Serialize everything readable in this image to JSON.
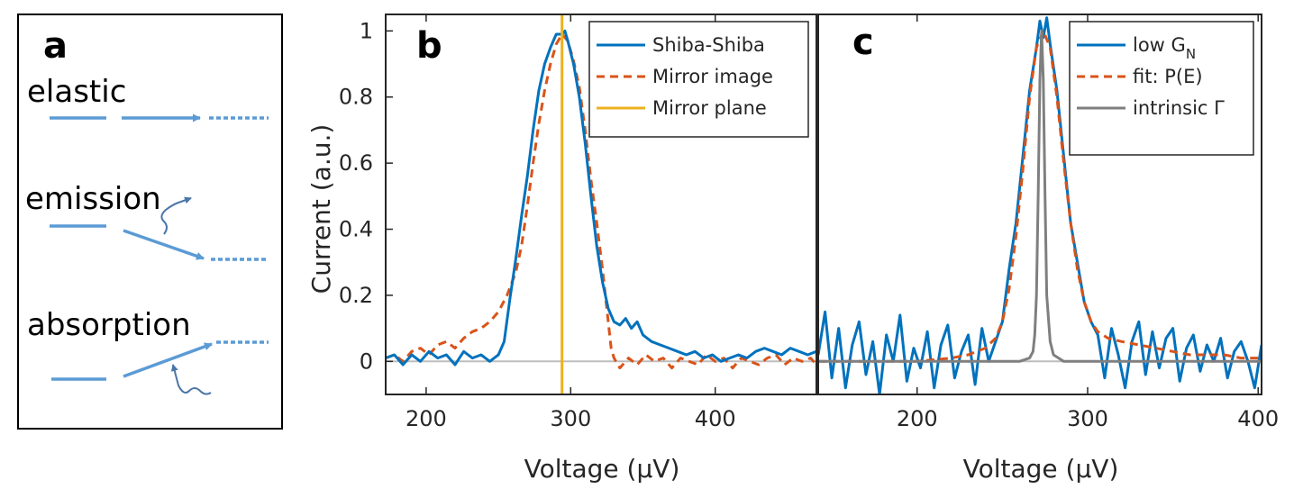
{
  "panel_a": {
    "letter": "a",
    "labels": [
      "elastic",
      "emission",
      "absorption"
    ]
  },
  "chart_data": [
    {
      "panel": "b",
      "type": "line",
      "title": "",
      "xlabel": "Voltage (μV)",
      "ylabel": "Current (a.u.)",
      "xlim": [
        172,
        470
      ],
      "ylim": [
        -0.1,
        1.05
      ],
      "xticks": [
        "200",
        "300",
        "400"
      ],
      "yticks": [
        "0",
        "0.2",
        "0.4",
        "0.6",
        "0.8",
        "1"
      ],
      "legend_position": "top-right",
      "series": [
        {
          "name": "Shiba-Shiba",
          "color": "#0072BD",
          "style": "solid",
          "x": [
            172,
            178,
            184,
            190,
            196,
            202,
            208,
            214,
            220,
            226,
            232,
            238,
            244,
            250,
            254,
            258,
            262,
            266,
            270,
            274,
            278,
            282,
            286,
            290,
            294,
            296,
            298,
            302,
            306,
            310,
            314,
            318,
            322,
            326,
            330,
            334,
            338,
            342,
            346,
            350,
            356,
            362,
            368,
            374,
            380,
            386,
            392,
            398,
            404,
            410,
            416,
            422,
            428,
            434,
            440,
            446,
            452,
            458,
            464,
            470
          ],
          "y": [
            0.01,
            0.02,
            -0.01,
            0.02,
            0.0,
            0.03,
            0.01,
            0.02,
            -0.01,
            0.03,
            0.01,
            0.02,
            0.0,
            0.02,
            0.06,
            0.19,
            0.31,
            0.44,
            0.56,
            0.7,
            0.82,
            0.9,
            0.95,
            0.99,
            0.99,
            1.0,
            0.97,
            0.9,
            0.8,
            0.66,
            0.5,
            0.35,
            0.24,
            0.16,
            0.12,
            0.11,
            0.13,
            0.1,
            0.12,
            0.08,
            0.06,
            0.05,
            0.04,
            0.03,
            0.02,
            0.03,
            0.01,
            0.02,
            0.0,
            0.01,
            0.02,
            0.01,
            0.03,
            0.04,
            0.03,
            0.02,
            0.04,
            0.03,
            0.02,
            0.03
          ]
        },
        {
          "name": "Mirror image",
          "color": "#D95319",
          "style": "dashed",
          "x": [
            172,
            178,
            184,
            190,
            196,
            202,
            208,
            214,
            220,
            226,
            232,
            238,
            244,
            250,
            256,
            262,
            266,
            270,
            274,
            278,
            282,
            286,
            290,
            294,
            298,
            302,
            306,
            310,
            314,
            318,
            322,
            326,
            328,
            330,
            334,
            340,
            346,
            352,
            358,
            364,
            370,
            376,
            382,
            388,
            394,
            400,
            406,
            412,
            418,
            424,
            430,
            436,
            442,
            448,
            454,
            460,
            466,
            470
          ],
          "y": [
            0.01,
            0.02,
            0.0,
            0.03,
            0.04,
            0.02,
            0.05,
            0.06,
            0.04,
            0.07,
            0.09,
            0.1,
            0.12,
            0.15,
            0.2,
            0.27,
            0.35,
            0.47,
            0.6,
            0.72,
            0.82,
            0.9,
            0.96,
            0.99,
            0.97,
            0.91,
            0.83,
            0.7,
            0.55,
            0.42,
            0.28,
            0.12,
            0.04,
            0.01,
            -0.02,
            0.01,
            -0.01,
            0.02,
            0.0,
            0.01,
            -0.02,
            0.01,
            0.0,
            -0.01,
            0.02,
            0.0,
            0.01,
            -0.02,
            0.01,
            0.0,
            -0.01,
            0.01,
            0.02,
            -0.01,
            0.01,
            0.0,
            0.01,
            -0.01
          ]
        },
        {
          "name": "Mirror plane",
          "color": "#EDB120",
          "style": "vertical",
          "x": [
            294,
            294
          ],
          "y": [
            -0.1,
            1.05
          ]
        }
      ]
    },
    {
      "panel": "c",
      "type": "line",
      "title": "",
      "xlabel": "Voltage (μV)",
      "ylabel": "",
      "xlim": [
        142,
        402
      ],
      "ylim": [
        -0.1,
        1.05
      ],
      "xticks": [
        "200",
        "300",
        "400"
      ],
      "yticks": [],
      "legend_position": "top-right",
      "legend_labels": [
        "low G",
        "fit: P(E)",
        "intrinsic Γ"
      ],
      "legend_subscript": "N",
      "series": [
        {
          "name": "low G_N",
          "color": "#0072BD",
          "style": "solid",
          "x": [
            142,
            146,
            150,
            154,
            158,
            162,
            166,
            170,
            174,
            178,
            182,
            186,
            190,
            194,
            198,
            202,
            206,
            210,
            214,
            218,
            222,
            226,
            230,
            234,
            238,
            242,
            246,
            250,
            254,
            258,
            262,
            266,
            270,
            272,
            274,
            276,
            278,
            282,
            286,
            290,
            294,
            298,
            302,
            306,
            310,
            314,
            318,
            322,
            326,
            330,
            334,
            338,
            342,
            346,
            350,
            354,
            358,
            362,
            366,
            370,
            374,
            378,
            382,
            386,
            390,
            394,
            398,
            402
          ],
          "y": [
            0.02,
            0.15,
            -0.05,
            0.1,
            -0.08,
            0.05,
            0.12,
            -0.04,
            0.06,
            -0.1,
            0.08,
            0.0,
            0.14,
            -0.06,
            0.04,
            -0.02,
            0.09,
            -0.08,
            0.05,
            0.11,
            -0.05,
            0.03,
            0.08,
            -0.07,
            0.1,
            0.0,
            0.06,
            0.12,
            0.28,
            0.42,
            0.62,
            0.82,
            0.95,
            1.03,
            0.98,
            1.04,
            0.96,
            0.82,
            0.62,
            0.42,
            0.3,
            0.18,
            0.12,
            0.08,
            -0.05,
            0.1,
            0.02,
            -0.08,
            0.06,
            0.12,
            -0.04,
            0.09,
            -0.02,
            0.07,
            0.1,
            -0.06,
            0.04,
            0.08,
            -0.03,
            0.05,
            0.0,
            0.07,
            -0.05,
            0.03,
            0.06,
            0.0,
            -0.08,
            0.05
          ]
        },
        {
          "name": "fit: P(E)",
          "color": "#D95319",
          "style": "dashed",
          "x": [
            142,
            160,
            180,
            200,
            220,
            230,
            240,
            246,
            250,
            254,
            258,
            262,
            266,
            270,
            274,
            278,
            282,
            286,
            290,
            294,
            298,
            302,
            306,
            312,
            320,
            330,
            340,
            350,
            360,
            370,
            380,
            390,
            402
          ],
          "y": [
            0.0,
            0.0,
            0.0,
            0.0,
            0.01,
            0.02,
            0.04,
            0.07,
            0.12,
            0.22,
            0.38,
            0.58,
            0.8,
            0.95,
            1.0,
            0.95,
            0.8,
            0.6,
            0.42,
            0.28,
            0.18,
            0.12,
            0.09,
            0.07,
            0.06,
            0.05,
            0.04,
            0.03,
            0.02,
            0.02,
            0.02,
            0.01,
            0.01
          ]
        },
        {
          "name": "intrinsic Γ",
          "color": "#7F7F7F",
          "style": "solid",
          "x": [
            142,
            260,
            266,
            268,
            269,
            270,
            271,
            272,
            273,
            274,
            275,
            276,
            278,
            280,
            286,
            402
          ],
          "y": [
            0.0,
            0.0,
            0.01,
            0.03,
            0.08,
            0.2,
            0.5,
            0.85,
            1.0,
            0.85,
            0.5,
            0.2,
            0.06,
            0.02,
            0.0,
            0.0
          ]
        }
      ]
    }
  ],
  "panel_letters": {
    "b": "b",
    "c": "c"
  }
}
